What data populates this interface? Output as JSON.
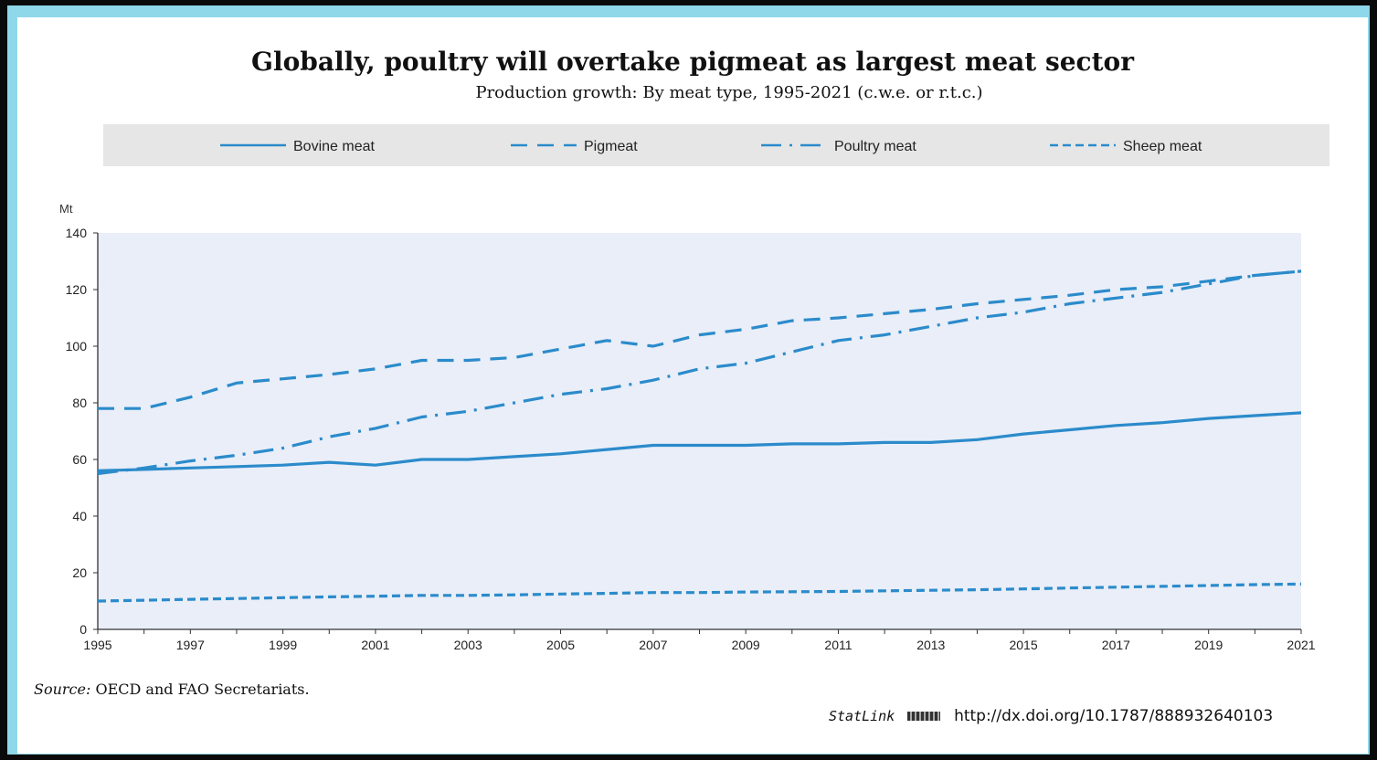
{
  "header": {
    "title": "Globally, poultry will overtake pigmeat as largest meat sector",
    "subtitle": "Production growth: By meat type, 1995-2021 (c.w.e. or r.t.c.)"
  },
  "footer": {
    "source_prefix": "Source:",
    "source_text": "OECD and FAO Secretariats.",
    "statlink_label": "StatLink",
    "statlink_url": "http://dx.doi.org/10.1787/888932640103"
  },
  "chart_data": {
    "type": "line",
    "title": "Globally, poultry will overtake pigmeat as largest meat sector",
    "subtitle": "Production growth: By meat type, 1995-2021 (c.w.e. or r.t.c.)",
    "ylabel": "Mt",
    "xlabel": "",
    "xlim": [
      1995,
      2021
    ],
    "ylim": [
      0,
      140
    ],
    "yticks": [
      0,
      20,
      40,
      60,
      80,
      100,
      120,
      140
    ],
    "xticks": [
      1995,
      1997,
      1999,
      2001,
      2003,
      2005,
      2007,
      2009,
      2011,
      2013,
      2015,
      2017,
      2019,
      2021
    ],
    "legend_position": "top",
    "grid": false,
    "x": [
      1995,
      1996,
      1997,
      1998,
      1999,
      2000,
      2001,
      2002,
      2003,
      2004,
      2005,
      2006,
      2007,
      2008,
      2009,
      2010,
      2011,
      2012,
      2013,
      2014,
      2015,
      2016,
      2017,
      2018,
      2019,
      2020,
      2021
    ],
    "series": [
      {
        "name": "Bovine meat",
        "style": "solid",
        "values": [
          56,
          56.5,
          57,
          57.5,
          58,
          59,
          58,
          60,
          60,
          61,
          62,
          63.5,
          65,
          65,
          65,
          65.5,
          65.5,
          66,
          66,
          67,
          69,
          70.5,
          72,
          73,
          74.5,
          75.5,
          76.5
        ]
      },
      {
        "name": "Pigmeat",
        "style": "dashed",
        "values": [
          78,
          78,
          82,
          87,
          88.5,
          90,
          92,
          95,
          95,
          96,
          99,
          102,
          100,
          104,
          106,
          109,
          110,
          111.5,
          113,
          115,
          116.5,
          118,
          120,
          121,
          123,
          125,
          126.5
        ]
      },
      {
        "name": "Poultry meat",
        "style": "dashdot",
        "values": [
          55,
          57,
          59.5,
          61.5,
          64,
          68,
          71,
          75,
          77,
          80,
          83,
          85,
          88,
          92,
          94,
          98,
          102,
          104,
          107,
          110,
          112,
          115,
          117,
          119,
          122,
          125,
          126.5
        ]
      },
      {
        "name": "Sheep meat",
        "style": "dotted-dash",
        "values": [
          10,
          10.3,
          10.6,
          10.9,
          11.2,
          11.5,
          11.7,
          12,
          12,
          12.2,
          12.5,
          12.7,
          13,
          13,
          13.2,
          13.3,
          13.4,
          13.6,
          13.8,
          14,
          14.3,
          14.6,
          14.9,
          15.2,
          15.5,
          15.8,
          16
        ]
      }
    ],
    "colors": {
      "line": "#2b8bcb",
      "plot_bg": "#e9eef8",
      "legend_bg": "#e6e6e6"
    }
  }
}
